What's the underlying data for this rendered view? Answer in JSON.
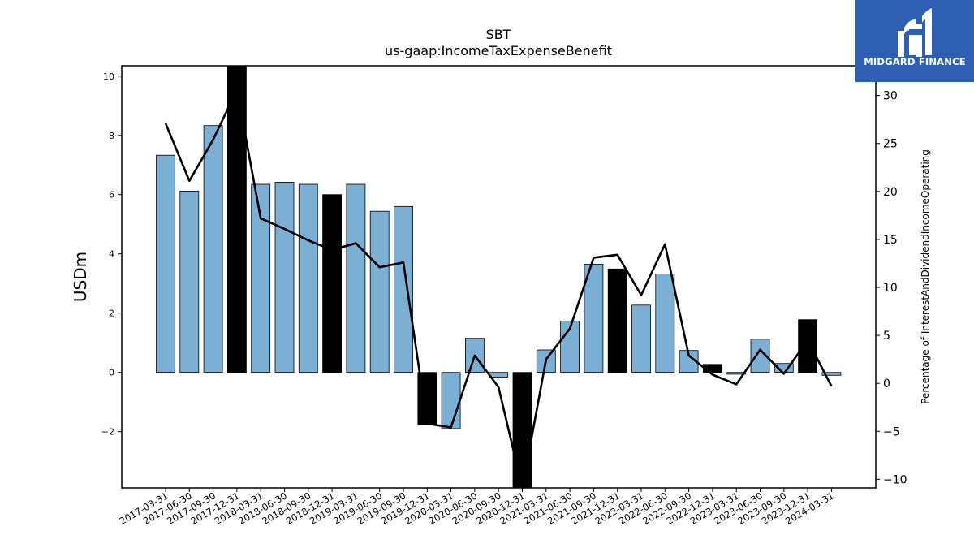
{
  "chart_data": {
    "type": "bar",
    "title": "SBT",
    "subtitle": "us-gaap:IncomeTaxExpenseBenefit",
    "ylabel": "USDm",
    "y2label": "Percentage of InterestAndDividendIncomeOperating",
    "ylim": [
      -3.9,
      10.35
    ],
    "y2lim": [
      -10.9,
      33.1
    ],
    "yticks": [
      -2,
      0,
      2,
      4,
      6,
      8,
      10
    ],
    "y2ticks": [
      -10,
      -5,
      0,
      5,
      10,
      15,
      20,
      25,
      30
    ],
    "grid": false,
    "categories": [
      "2017-03-31",
      "2017-06-30",
      "2017-09-30",
      "2017-12-31",
      "2018-03-31",
      "2018-06-30",
      "2018-09-30",
      "2018-12-31",
      "2019-03-31",
      "2019-06-30",
      "2019-09-30",
      "2019-12-31",
      "2020-03-31",
      "2020-06-30",
      "2020-09-30",
      "2020-12-31",
      "2021-03-31",
      "2021-06-30",
      "2021-09-30",
      "2021-12-31",
      "2022-03-31",
      "2022-06-30",
      "2022-09-30",
      "2022-12-31",
      "2023-03-31",
      "2023-06-30",
      "2023-09-30",
      "2023-12-31",
      "2024-03-31"
    ],
    "series": [
      {
        "type": "bar",
        "axis": "left",
        "values": [
          7.33,
          6.12,
          8.33,
          10.35,
          6.35,
          6.42,
          6.35,
          6.0,
          6.35,
          5.44,
          5.6,
          -1.77,
          -1.9,
          1.15,
          -0.16,
          -3.9,
          0.76,
          1.73,
          3.65,
          3.49,
          2.27,
          3.32,
          0.74,
          0.27,
          -0.06,
          1.12,
          0.3,
          1.78,
          -0.1
        ],
        "highlight_color": "#000000",
        "highlight_indices": [
          3,
          7,
          11,
          15,
          19,
          23,
          27
        ]
      },
      {
        "type": "line",
        "axis": "right",
        "values": [
          27.1,
          21.1,
          25.4,
          30.6,
          17.2,
          16.1,
          14.9,
          13.9,
          14.6,
          12.1,
          12.6,
          -4.2,
          -4.6,
          2.9,
          -0.4,
          -10.9,
          2.5,
          5.7,
          13.1,
          13.4,
          9.2,
          14.5,
          2.9,
          0.9,
          -0.1,
          3.5,
          1.0,
          4.5,
          -0.3
        ]
      }
    ],
    "colors": {
      "bar": "#7bafd4",
      "highlight": "#000000",
      "line": "#000000"
    }
  },
  "logo": {
    "text": "MIDGARD FINANCE",
    "background": "#2f5fb3"
  }
}
